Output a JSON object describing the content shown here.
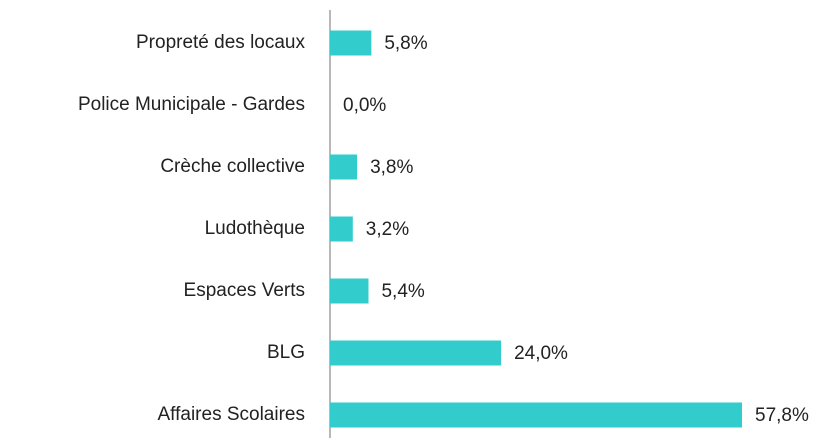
{
  "chart_data": {
    "type": "bar",
    "orientation": "horizontal",
    "categories": [
      "Propreté des locaux",
      "Police Municipale - Gardes",
      "Crèche collective",
      "Ludothèque",
      "Espaces Verts",
      "BLG",
      "Affaires Scolaires"
    ],
    "values": [
      5.8,
      0.0,
      3.8,
      3.2,
      5.4,
      24.0,
      57.8
    ],
    "value_labels": [
      "5,8%",
      "0,0%",
      "3,8%",
      "3,2%",
      "5,4%",
      "24,0%",
      "57,8%"
    ],
    "color": "#33cccc"
  }
}
